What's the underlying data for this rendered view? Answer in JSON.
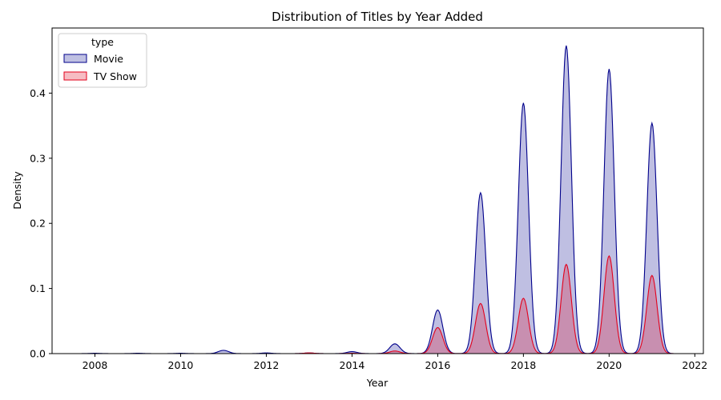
{
  "chart_data": {
    "type": "area",
    "title": "Distribution of Titles by Year Added",
    "xlabel": "Year",
    "ylabel": "Density",
    "xlim": [
      2007.0,
      2022.2
    ],
    "ylim": [
      0,
      0.5
    ],
    "x_ticks": [
      2008,
      2010,
      2012,
      2014,
      2016,
      2018,
      2020,
      2022
    ],
    "y_ticks": [
      0.0,
      0.1,
      0.2,
      0.3,
      0.4
    ],
    "x_tick_labels": [
      "2008",
      "2010",
      "2012",
      "2014",
      "2016",
      "2018",
      "2020",
      "2022"
    ],
    "y_tick_labels": [
      "0.0",
      "0.1",
      "0.2",
      "0.3",
      "0.4"
    ],
    "grid": false,
    "legend": {
      "title": "type",
      "placement": "top-left"
    },
    "series": [
      {
        "name": "Movie",
        "line_color": "#00008b",
        "fill_color": "#bfc0e2",
        "x_range": [
          2007.5,
          2021.5
        ],
        "peaks": [
          {
            "year": 2008,
            "density": 0.0005
          },
          {
            "year": 2009,
            "density": 0.0005
          },
          {
            "year": 2010,
            "density": 0.0005
          },
          {
            "year": 2011,
            "density": 0.005
          },
          {
            "year": 2012,
            "density": 0.001
          },
          {
            "year": 2013,
            "density": 0.001
          },
          {
            "year": 2014,
            "density": 0.003
          },
          {
            "year": 2015,
            "density": 0.015
          },
          {
            "year": 2016,
            "density": 0.067
          },
          {
            "year": 2017,
            "density": 0.247
          },
          {
            "year": 2018,
            "density": 0.385
          },
          {
            "year": 2019,
            "density": 0.473
          },
          {
            "year": 2020,
            "density": 0.437
          },
          {
            "year": 2021,
            "density": 0.354
          }
        ]
      },
      {
        "name": "TV Show",
        "line_color": "#e3001b",
        "fill_color": "#f6bcc3",
        "x_range": [
          2007.5,
          2021.5
        ],
        "peaks": [
          {
            "year": 2008,
            "density": 0.0
          },
          {
            "year": 2013,
            "density": 0.001
          },
          {
            "year": 2014,
            "density": 0.0005
          },
          {
            "year": 2015,
            "density": 0.004
          },
          {
            "year": 2016,
            "density": 0.04
          },
          {
            "year": 2017,
            "density": 0.077
          },
          {
            "year": 2018,
            "density": 0.085
          },
          {
            "year": 2019,
            "density": 0.137
          },
          {
            "year": 2020,
            "density": 0.15
          },
          {
            "year": 2021,
            "density": 0.12
          }
        ]
      }
    ]
  }
}
